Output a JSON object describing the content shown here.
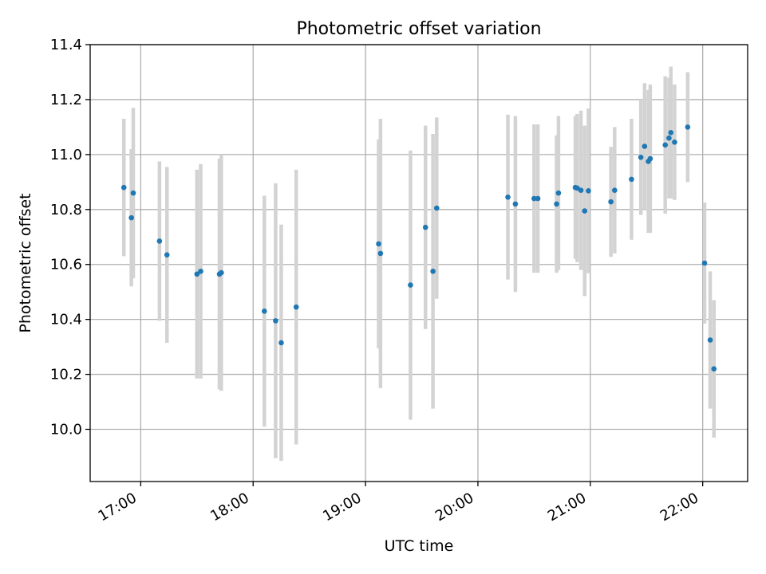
{
  "chart_data": {
    "type": "scatter",
    "title": "Photometric offset variation",
    "xlabel": "UTC time",
    "ylabel": "Photometric offset",
    "grid": true,
    "xlim": [
      "16:33",
      "22:24"
    ],
    "ylim": [
      9.81,
      11.4
    ],
    "xticks": [
      "17:00",
      "18:00",
      "19:00",
      "20:00",
      "21:00",
      "22:00"
    ],
    "yticks": [
      "10.0",
      "10.2",
      "10.4",
      "10.6",
      "10.8",
      "11.0",
      "11.2",
      "11.4"
    ],
    "colors": {
      "points": "#1f77b4",
      "errorbars": "#d3d3d3",
      "grid": "#b0b0b0"
    },
    "series": [
      {
        "x": [
          "16:51",
          "16:55",
          "16:56",
          "17:10",
          "17:14",
          "17:30",
          "17:32",
          "17:42",
          "17:43",
          "18:06",
          "18:12",
          "18:15",
          "18:23",
          "19:07",
          "19:08",
          "19:24",
          "19:32",
          "19:36",
          "19:38",
          "20:16",
          "20:20",
          "20:30",
          "20:32",
          "20:42",
          "20:43",
          "20:52",
          "20:53",
          "20:55",
          "20:57",
          "20:59",
          "21:11",
          "21:13",
          "21:22",
          "21:27",
          "21:29",
          "21:31",
          "21:32",
          "21:40",
          "21:42",
          "21:43",
          "21:45",
          "21:52",
          "22:01",
          "22:04",
          "22:06"
        ],
        "y": [
          10.88,
          10.77,
          10.86,
          10.685,
          10.635,
          10.565,
          10.575,
          10.565,
          10.57,
          10.43,
          10.395,
          10.315,
          10.445,
          10.675,
          10.64,
          10.525,
          10.735,
          10.575,
          10.805,
          10.845,
          10.82,
          10.84,
          10.84,
          10.82,
          10.86,
          10.88,
          10.878,
          10.87,
          10.795,
          10.868,
          10.828,
          10.87,
          10.91,
          10.99,
          11.03,
          10.975,
          10.985,
          11.035,
          11.06,
          11.08,
          11.045,
          11.1,
          10.605,
          10.325,
          10.22
        ],
        "yerr": [
          0.25,
          0.25,
          0.31,
          0.29,
          0.32,
          0.38,
          0.39,
          0.42,
          0.43,
          0.42,
          0.5,
          0.43,
          0.5,
          0.38,
          0.49,
          0.49,
          0.37,
          0.5,
          0.33,
          0.3,
          0.32,
          0.27,
          0.27,
          0.25,
          0.28,
          0.26,
          0.27,
          0.29,
          0.31,
          0.3,
          0.2,
          0.23,
          0.22,
          0.21,
          0.23,
          0.26,
          0.27,
          0.25,
          0.22,
          0.24,
          0.21,
          0.2,
          0.22,
          0.25,
          0.25
        ]
      }
    ]
  }
}
